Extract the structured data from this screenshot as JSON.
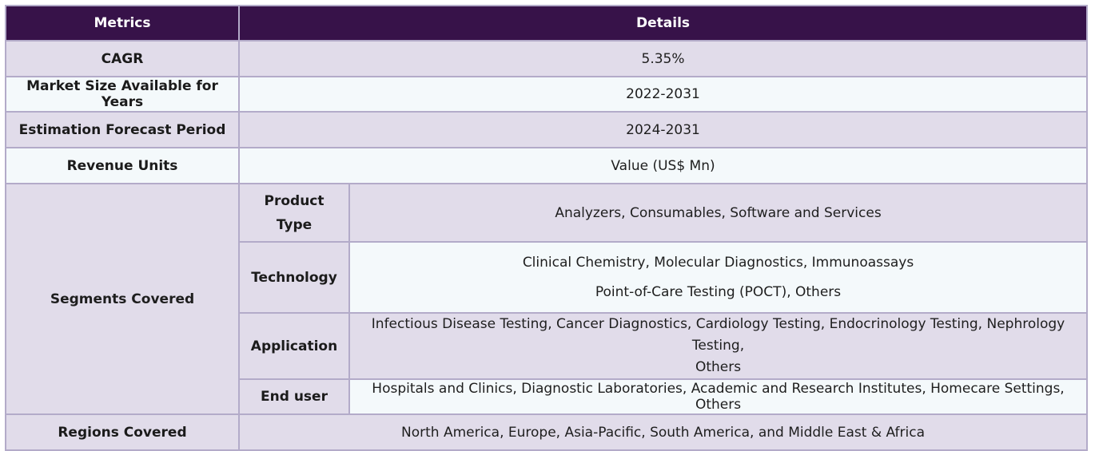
{
  "header": {
    "metrics": "Metrics",
    "details": "Details"
  },
  "rows": [
    {
      "metric": "CAGR",
      "value": "5.35%"
    },
    {
      "metric": "Market Size Available for Years",
      "value": "2022-2031"
    },
    {
      "metric": "Estimation Forecast Period",
      "value": "2024-2031"
    },
    {
      "metric": "Revenue Units",
      "value": "Value (US$ Mn)"
    }
  ],
  "segments": {
    "label": "Segments Covered",
    "items": [
      {
        "name_line1": "Product",
        "name_line2": "Type",
        "value": "Analyzers, Consumables, Software and Services"
      },
      {
        "name": "Technology",
        "value_line1": "Clinical Chemistry, Molecular Diagnostics, Immunoassays",
        "value_line2": "Point-of-Care Testing (POCT), Others"
      },
      {
        "name": "Application",
        "value_line1": "Infectious Disease Testing, Cancer Diagnostics, Cardiology Testing, Endocrinology Testing, Nephrology Testing,",
        "value_line2": "Others"
      },
      {
        "name": "End user",
        "value": "Hospitals and Clinics, Diagnostic Laboratories, Academic and Research Institutes, Homecare Settings, Others"
      }
    ]
  },
  "regions": {
    "metric": "Regions Covered",
    "value": "North America, Europe, Asia-Pacific, South America, and Middle East & Africa"
  },
  "colors": {
    "header_bg": "#371249",
    "row_shaded": "#e1dcea",
    "row_light": "#f4f9fb",
    "border": "#b3abc9"
  }
}
